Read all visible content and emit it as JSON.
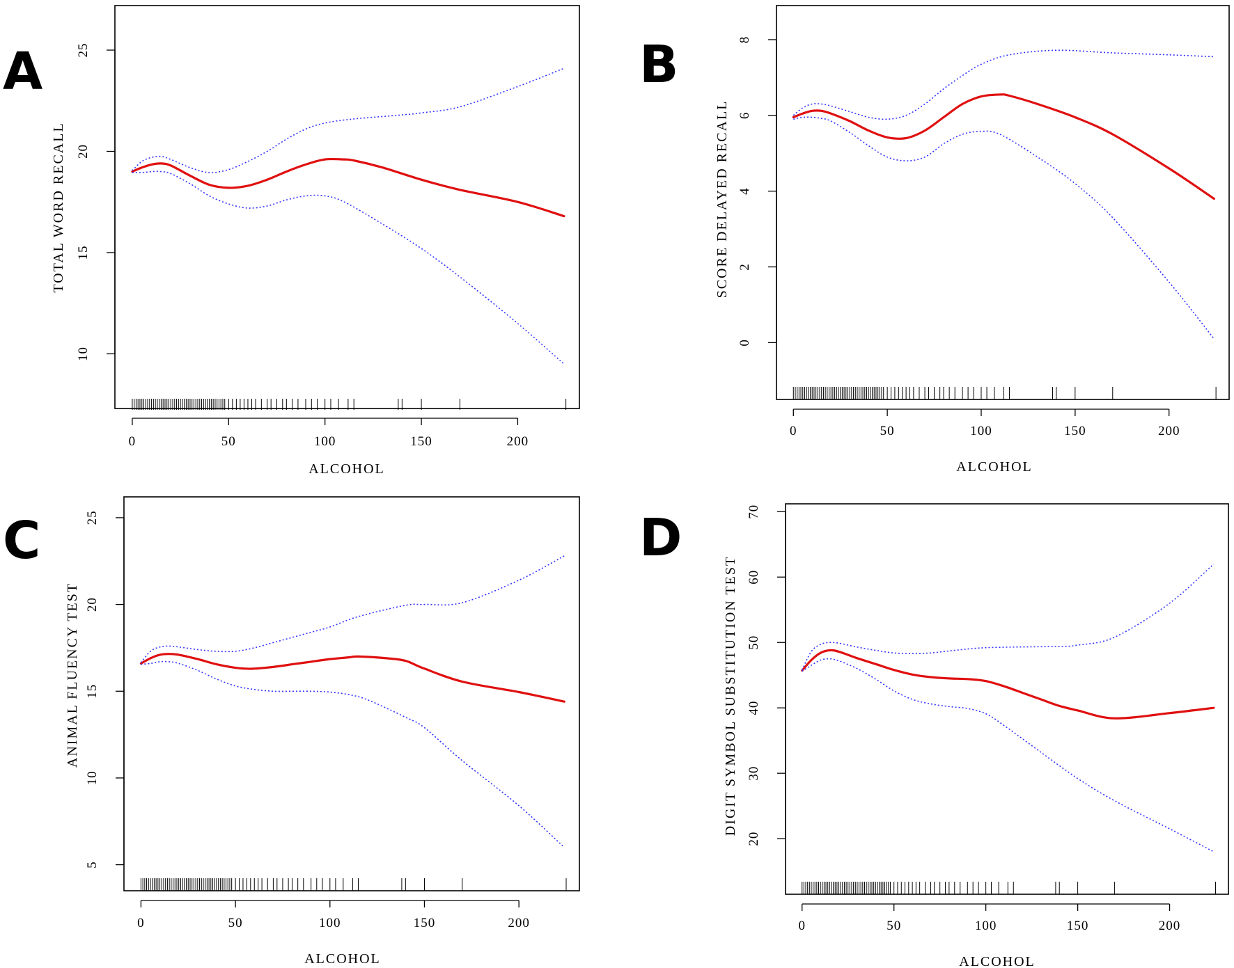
{
  "chart_data": [
    {
      "panel": "A",
      "type": "line",
      "xlabel": "ALCOHOL",
      "ylabel": "TOTAL WORD RECALL",
      "xlim": [
        -9,
        232
      ],
      "ylim": [
        7.3,
        27.2
      ],
      "xticks": [
        0,
        50,
        100,
        150,
        200
      ],
      "yticks": [
        10,
        15,
        20,
        25
      ],
      "series": [
        {
          "name": "fit",
          "x": [
            0,
            5,
            10,
            15,
            20,
            30,
            40,
            50,
            60,
            70,
            80,
            90,
            100,
            110,
            115,
            130,
            150,
            170,
            200,
            224
          ],
          "y": [
            19.0,
            19.2,
            19.35,
            19.4,
            19.3,
            18.8,
            18.35,
            18.2,
            18.3,
            18.6,
            19.0,
            19.35,
            19.6,
            19.6,
            19.55,
            19.2,
            18.6,
            18.1,
            17.5,
            16.8
          ]
        },
        {
          "name": "upper",
          "x": [
            0,
            5,
            10,
            15,
            20,
            30,
            40,
            50,
            60,
            70,
            80,
            90,
            100,
            115,
            140,
            150,
            170,
            200,
            224
          ],
          "y": [
            19.05,
            19.5,
            19.7,
            19.75,
            19.6,
            19.2,
            18.95,
            19.1,
            19.5,
            20.0,
            20.6,
            21.1,
            21.4,
            21.6,
            21.8,
            21.9,
            22.2,
            23.2,
            24.1
          ]
        },
        {
          "name": "lower",
          "x": [
            0,
            5,
            10,
            15,
            20,
            30,
            40,
            50,
            60,
            70,
            80,
            90,
            100,
            110,
            130,
            150,
            170,
            200,
            224
          ],
          "y": [
            18.95,
            18.95,
            19.0,
            19.0,
            18.9,
            18.4,
            17.8,
            17.4,
            17.2,
            17.3,
            17.6,
            17.8,
            17.8,
            17.5,
            16.4,
            15.2,
            13.8,
            11.5,
            9.5
          ]
        }
      ],
      "rug": [
        0,
        1,
        2,
        3,
        4,
        5,
        6,
        7,
        8,
        9,
        10,
        11,
        12,
        13,
        14,
        15,
        16,
        17,
        18,
        19,
        20,
        21,
        22,
        23,
        24,
        25,
        26,
        27,
        28,
        29,
        30,
        31,
        32,
        33,
        34,
        35,
        36,
        37,
        38,
        39,
        40,
        41,
        42,
        43,
        44,
        45,
        46,
        47,
        48,
        50,
        52,
        54,
        56,
        58,
        60,
        62,
        64,
        67,
        70,
        72,
        75,
        78,
        80,
        83,
        86,
        90,
        93,
        96,
        100,
        103,
        107,
        112,
        115,
        138,
        140,
        150,
        170,
        225
      ]
    },
    {
      "panel": "B",
      "type": "line",
      "xlabel": "ALCOHOL",
      "ylabel": "SCORE DELAYED RECALL",
      "xlim": [
        -9,
        232
      ],
      "ylim": [
        -1.5,
        8.9
      ],
      "xticks": [
        0,
        50,
        100,
        150,
        200
      ],
      "yticks": [
        0,
        2,
        4,
        6,
        8
      ],
      "series": [
        {
          "name": "fit",
          "x": [
            0,
            5,
            10,
            15,
            20,
            30,
            40,
            50,
            60,
            70,
            80,
            90,
            100,
            110,
            115,
            130,
            150,
            170,
            200,
            224
          ],
          "y": [
            5.95,
            6.05,
            6.12,
            6.12,
            6.05,
            5.85,
            5.6,
            5.42,
            5.4,
            5.6,
            5.95,
            6.3,
            6.5,
            6.55,
            6.52,
            6.3,
            5.95,
            5.5,
            4.6,
            3.8
          ]
        },
        {
          "name": "upper",
          "x": [
            0,
            5,
            10,
            15,
            20,
            30,
            40,
            50,
            60,
            70,
            80,
            90,
            100,
            115,
            140,
            170,
            200,
            224
          ],
          "y": [
            6.0,
            6.2,
            6.3,
            6.3,
            6.25,
            6.1,
            5.95,
            5.9,
            6.0,
            6.3,
            6.7,
            7.05,
            7.35,
            7.6,
            7.72,
            7.65,
            7.6,
            7.55
          ]
        },
        {
          "name": "lower",
          "x": [
            0,
            5,
            10,
            15,
            20,
            30,
            40,
            50,
            60,
            70,
            80,
            90,
            100,
            110,
            130,
            150,
            170,
            200,
            224
          ],
          "y": [
            5.9,
            5.95,
            5.95,
            5.92,
            5.85,
            5.55,
            5.2,
            4.9,
            4.8,
            4.9,
            5.25,
            5.5,
            5.58,
            5.5,
            4.9,
            4.2,
            3.3,
            1.6,
            0.1
          ]
        }
      ],
      "rug": [
        0,
        1,
        2,
        3,
        4,
        5,
        6,
        7,
        8,
        9,
        10,
        11,
        12,
        13,
        14,
        15,
        16,
        17,
        18,
        19,
        20,
        21,
        22,
        23,
        24,
        25,
        26,
        27,
        28,
        29,
        30,
        31,
        32,
        33,
        34,
        35,
        36,
        37,
        38,
        39,
        40,
        41,
        42,
        43,
        44,
        45,
        46,
        47,
        48,
        50,
        52,
        54,
        56,
        58,
        60,
        62,
        64,
        67,
        70,
        72,
        75,
        78,
        80,
        83,
        86,
        90,
        93,
        96,
        100,
        103,
        107,
        112,
        115,
        138,
        140,
        150,
        170,
        225
      ]
    },
    {
      "panel": "C",
      "type": "line",
      "xlabel": "ALCOHOL",
      "ylabel": "ANIMAL FLUENCY TEST",
      "xlim": [
        -9,
        232
      ],
      "ylim": [
        3.5,
        26.2
      ],
      "xticks": [
        0,
        50,
        100,
        150,
        200
      ],
      "yticks": [
        5,
        10,
        15,
        20,
        25
      ],
      "series": [
        {
          "name": "fit",
          "x": [
            0,
            5,
            10,
            15,
            20,
            30,
            40,
            50,
            55,
            60,
            70,
            80,
            90,
            100,
            110,
            115,
            130,
            140,
            150,
            170,
            200,
            224
          ],
          "y": [
            16.6,
            16.9,
            17.1,
            17.15,
            17.1,
            16.85,
            16.55,
            16.35,
            16.3,
            16.3,
            16.4,
            16.55,
            16.7,
            16.85,
            16.95,
            17.0,
            16.9,
            16.75,
            16.3,
            15.55,
            14.95,
            14.4
          ]
        },
        {
          "name": "upper",
          "x": [
            0,
            5,
            10,
            15,
            20,
            30,
            40,
            50,
            60,
            70,
            80,
            90,
            100,
            115,
            140,
            150,
            170,
            200,
            224
          ],
          "y": [
            16.65,
            17.3,
            17.55,
            17.6,
            17.55,
            17.4,
            17.3,
            17.3,
            17.5,
            17.8,
            18.1,
            18.4,
            18.7,
            19.3,
            19.95,
            20.0,
            20.1,
            21.4,
            22.8
          ]
        },
        {
          "name": "lower",
          "x": [
            0,
            5,
            10,
            15,
            20,
            30,
            40,
            50,
            60,
            70,
            80,
            90,
            100,
            110,
            120,
            140,
            150,
            170,
            200,
            224
          ],
          "y": [
            16.55,
            16.6,
            16.7,
            16.7,
            16.6,
            16.2,
            15.7,
            15.3,
            15.1,
            15.0,
            15.0,
            15.0,
            14.95,
            14.8,
            14.5,
            13.5,
            12.9,
            11.0,
            8.4,
            6.0
          ]
        }
      ],
      "rug": [
        0,
        1,
        2,
        3,
        4,
        5,
        6,
        7,
        8,
        9,
        10,
        11,
        12,
        13,
        14,
        15,
        16,
        17,
        18,
        19,
        20,
        21,
        22,
        23,
        24,
        25,
        26,
        27,
        28,
        29,
        30,
        31,
        32,
        33,
        34,
        35,
        36,
        37,
        38,
        39,
        40,
        41,
        42,
        43,
        44,
        45,
        46,
        47,
        48,
        50,
        52,
        54,
        56,
        58,
        60,
        62,
        64,
        67,
        70,
        72,
        75,
        78,
        80,
        83,
        86,
        90,
        93,
        96,
        100,
        103,
        107,
        112,
        115,
        138,
        140,
        150,
        170,
        225
      ]
    },
    {
      "panel": "D",
      "type": "line",
      "xlabel": "ALCOHOL",
      "ylabel": "DIGIT SYMBOL SUBSTITUTION TEST",
      "xlim": [
        -9,
        232
      ],
      "ylim": [
        11.5,
        71.2
      ],
      "xticks": [
        0,
        50,
        100,
        150,
        200
      ],
      "yticks": [
        20,
        30,
        40,
        50,
        60,
        70
      ],
      "series": [
        {
          "name": "fit",
          "x": [
            0,
            5,
            10,
            15,
            20,
            30,
            40,
            50,
            60,
            70,
            80,
            90,
            100,
            110,
            120,
            130,
            140,
            150,
            170,
            200,
            224
          ],
          "y": [
            45.7,
            47.3,
            48.4,
            48.8,
            48.6,
            47.6,
            46.7,
            45.8,
            45.1,
            44.7,
            44.5,
            44.4,
            44.1,
            43.3,
            42.3,
            41.3,
            40.3,
            39.6,
            38.4,
            39.2,
            40.0
          ]
        },
        {
          "name": "upper",
          "x": [
            0,
            5,
            10,
            15,
            20,
            30,
            40,
            50,
            60,
            70,
            80,
            90,
            100,
            115,
            140,
            150,
            170,
            200,
            224
          ],
          "y": [
            45.8,
            48.6,
            49.7,
            50.0,
            49.9,
            49.3,
            48.8,
            48.4,
            48.3,
            48.4,
            48.7,
            49.0,
            49.2,
            49.3,
            49.4,
            49.6,
            50.8,
            56.0,
            62.0
          ]
        },
        {
          "name": "lower",
          "x": [
            0,
            5,
            10,
            15,
            20,
            30,
            40,
            50,
            60,
            70,
            80,
            90,
            100,
            110,
            130,
            150,
            170,
            200,
            224
          ],
          "y": [
            45.6,
            46.5,
            47.3,
            47.5,
            47.2,
            46.0,
            44.4,
            42.6,
            41.3,
            40.6,
            40.2,
            39.9,
            39.1,
            37.3,
            33.2,
            29.2,
            25.8,
            21.5,
            18.0
          ]
        }
      ],
      "rug": [
        0,
        1,
        2,
        3,
        4,
        5,
        6,
        7,
        8,
        9,
        10,
        11,
        12,
        13,
        14,
        15,
        16,
        17,
        18,
        19,
        20,
        21,
        22,
        23,
        24,
        25,
        26,
        27,
        28,
        29,
        30,
        31,
        32,
        33,
        34,
        35,
        36,
        37,
        38,
        39,
        40,
        41,
        42,
        43,
        44,
        45,
        46,
        47,
        48,
        50,
        52,
        54,
        56,
        58,
        60,
        62,
        64,
        67,
        70,
        72,
        75,
        78,
        80,
        83,
        86,
        90,
        93,
        96,
        100,
        103,
        107,
        112,
        115,
        138,
        140,
        150,
        170,
        225
      ]
    }
  ]
}
